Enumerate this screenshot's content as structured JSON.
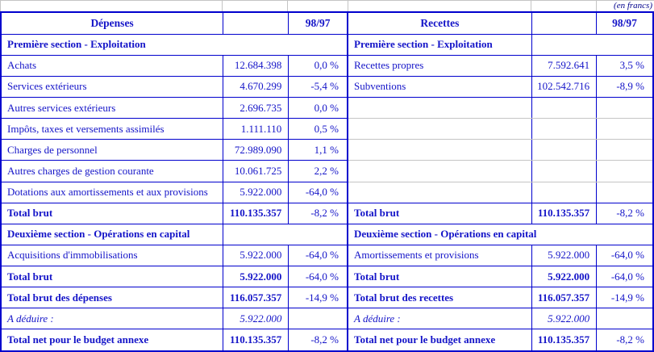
{
  "units_note": "(en francs)",
  "colors": {
    "text_blue": "#1414c8",
    "border_blue": "#0000cd",
    "grid_gray": "#c4c4c4",
    "note_navy": "#00008b"
  },
  "left": {
    "title": "Dépenses",
    "pct_header": "98/97",
    "rows": [
      {
        "type": "section",
        "span": "full",
        "label": "Première section - Exploitation"
      },
      {
        "type": "data",
        "label": "Achats",
        "value": "12.684.398",
        "pct": "0,0 %"
      },
      {
        "type": "data",
        "label": "Services extérieurs",
        "value": "4.670.299",
        "pct": "-5,4 %"
      },
      {
        "type": "data",
        "label": "Autres services extérieurs",
        "value": "2.696.735",
        "pct": "0,0 %"
      },
      {
        "type": "data",
        "label": "Impôts, taxes et versements assimilés",
        "value": "1.111.110",
        "pct": "0,5 %"
      },
      {
        "type": "data",
        "label": "Charges de personnel",
        "value": "72.989.090",
        "pct": "1,1 %"
      },
      {
        "type": "data",
        "label": "Autres charges de gestion courante",
        "value": "10.061.725",
        "pct": "2,2 %"
      },
      {
        "type": "data",
        "label": "Dotations aux amortissements et aux provisions",
        "value": "5.922.000",
        "pct": "-64,0 %"
      },
      {
        "type": "total",
        "label": "Total brut",
        "value": "110.135.357",
        "pct": "-8,2 %"
      },
      {
        "type": "section",
        "span": "label",
        "label": "Deuxième section - Opérations en capital"
      },
      {
        "type": "data",
        "label": "Acquisitions d'immobilisations",
        "value": "5.922.000",
        "pct": "-64,0 %"
      },
      {
        "type": "total",
        "label": "Total brut",
        "value": "5.922.000",
        "pct": "-64,0 %"
      },
      {
        "type": "total",
        "label": "Total brut des dépenses",
        "value": "116.057.357",
        "pct": "-14,9 %"
      },
      {
        "type": "deduce",
        "label": "A déduire :",
        "value": "5.922.000",
        "pct": ""
      },
      {
        "type": "total",
        "label": "Total net pour le budget annexe",
        "value": "110.135.357",
        "pct": "-8,2 %"
      }
    ]
  },
  "right": {
    "title": "Recettes",
    "pct_header": "98/97",
    "rows": [
      {
        "type": "section",
        "span": "label",
        "label": "Première section - Exploitation"
      },
      {
        "type": "data",
        "label": "Recettes propres",
        "value": "7.592.641",
        "pct": "3,5 %"
      },
      {
        "type": "data",
        "label": "Subventions",
        "value": "102.542.716",
        "pct": "-8,9 %"
      },
      {
        "type": "empty"
      },
      {
        "type": "empty"
      },
      {
        "type": "empty"
      },
      {
        "type": "empty"
      },
      {
        "type": "empty"
      },
      {
        "type": "total",
        "label": "Total brut",
        "value": "110.135.357",
        "pct": "-8,2 %"
      },
      {
        "type": "section",
        "span": "full",
        "label": "Deuxième section - Opérations en capital"
      },
      {
        "type": "data",
        "label": "Amortissements et provisions",
        "value": "5.922.000",
        "pct": "-64,0 %"
      },
      {
        "type": "total",
        "label": "Total brut",
        "value": "5.922.000",
        "pct": "-64,0 %"
      },
      {
        "type": "total",
        "label": "Total brut des recettes",
        "value": "116.057.357",
        "pct": "-14,9 %"
      },
      {
        "type": "deduce",
        "label": "A déduire :",
        "value": "5.922.000",
        "pct": ""
      },
      {
        "type": "total",
        "label": "Total net pour le budget annexe",
        "value": "110.135.357",
        "pct": "-8,2 %"
      }
    ]
  }
}
